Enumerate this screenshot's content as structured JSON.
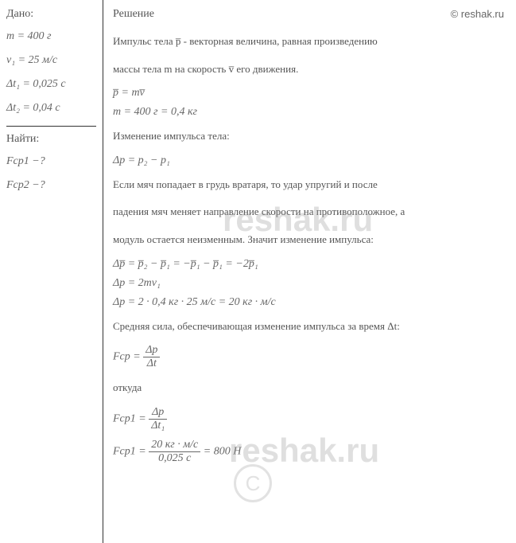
{
  "copyright": "© reshak.ru",
  "watermark": "reshak.ru",
  "left": {
    "given_header": "Дано:",
    "given": {
      "mass": "m = 400 г",
      "velocity": "v₁ = 25 м/с",
      "dt1": "Δt₁ = 0,025 с",
      "dt2": "Δt₂ = 0,04 с"
    },
    "find_header": "Найти:",
    "find": {
      "f1": "Fср1 −?",
      "f2": "Fср2 −?"
    }
  },
  "solution": {
    "header": "Решение",
    "line1": "Импульс тела p̅ - векторная величина, равная произведению",
    "line2": "массы тела m на скорость v̅ его движения.",
    "formula1": "p̅ = mv̅",
    "mass_conv": "m = 400 г = 0,4 кг",
    "line3": "Изменение импульса тела:",
    "formula2": "Δp = p₂ − p₁",
    "line4": "Если мяч попадает в грудь вратаря, то удар упругий и после",
    "line5": "падения мяч меняет направление скорости на противоположное, а",
    "line6": "модуль остается неизменным. Значит изменение импульса:",
    "formula3": "Δp̅ = p̅₂ − p̅₁ = −p̅₁ − p̅₁ = −2p̅₁",
    "formula4": "Δp = 2mv₁",
    "formula5": "Δp = 2 · 0,4 кг · 25 м/с = 20 кг · м/с",
    "line7": "Средняя сила, обеспечивающая изменение импульса за время Δt:",
    "formula6_left": "Fср =",
    "formula6_top": "Δp",
    "formula6_bot": "Δt",
    "line8": "откуда",
    "formula7_left": "Fср1 =",
    "formula7_top": "Δp",
    "formula7_bot": "Δt₁",
    "formula8_left": "Fср1 =",
    "formula8_top": "20 кг · м/с",
    "formula8_bot": "0,025 с",
    "formula8_result": " = 800 Н"
  }
}
